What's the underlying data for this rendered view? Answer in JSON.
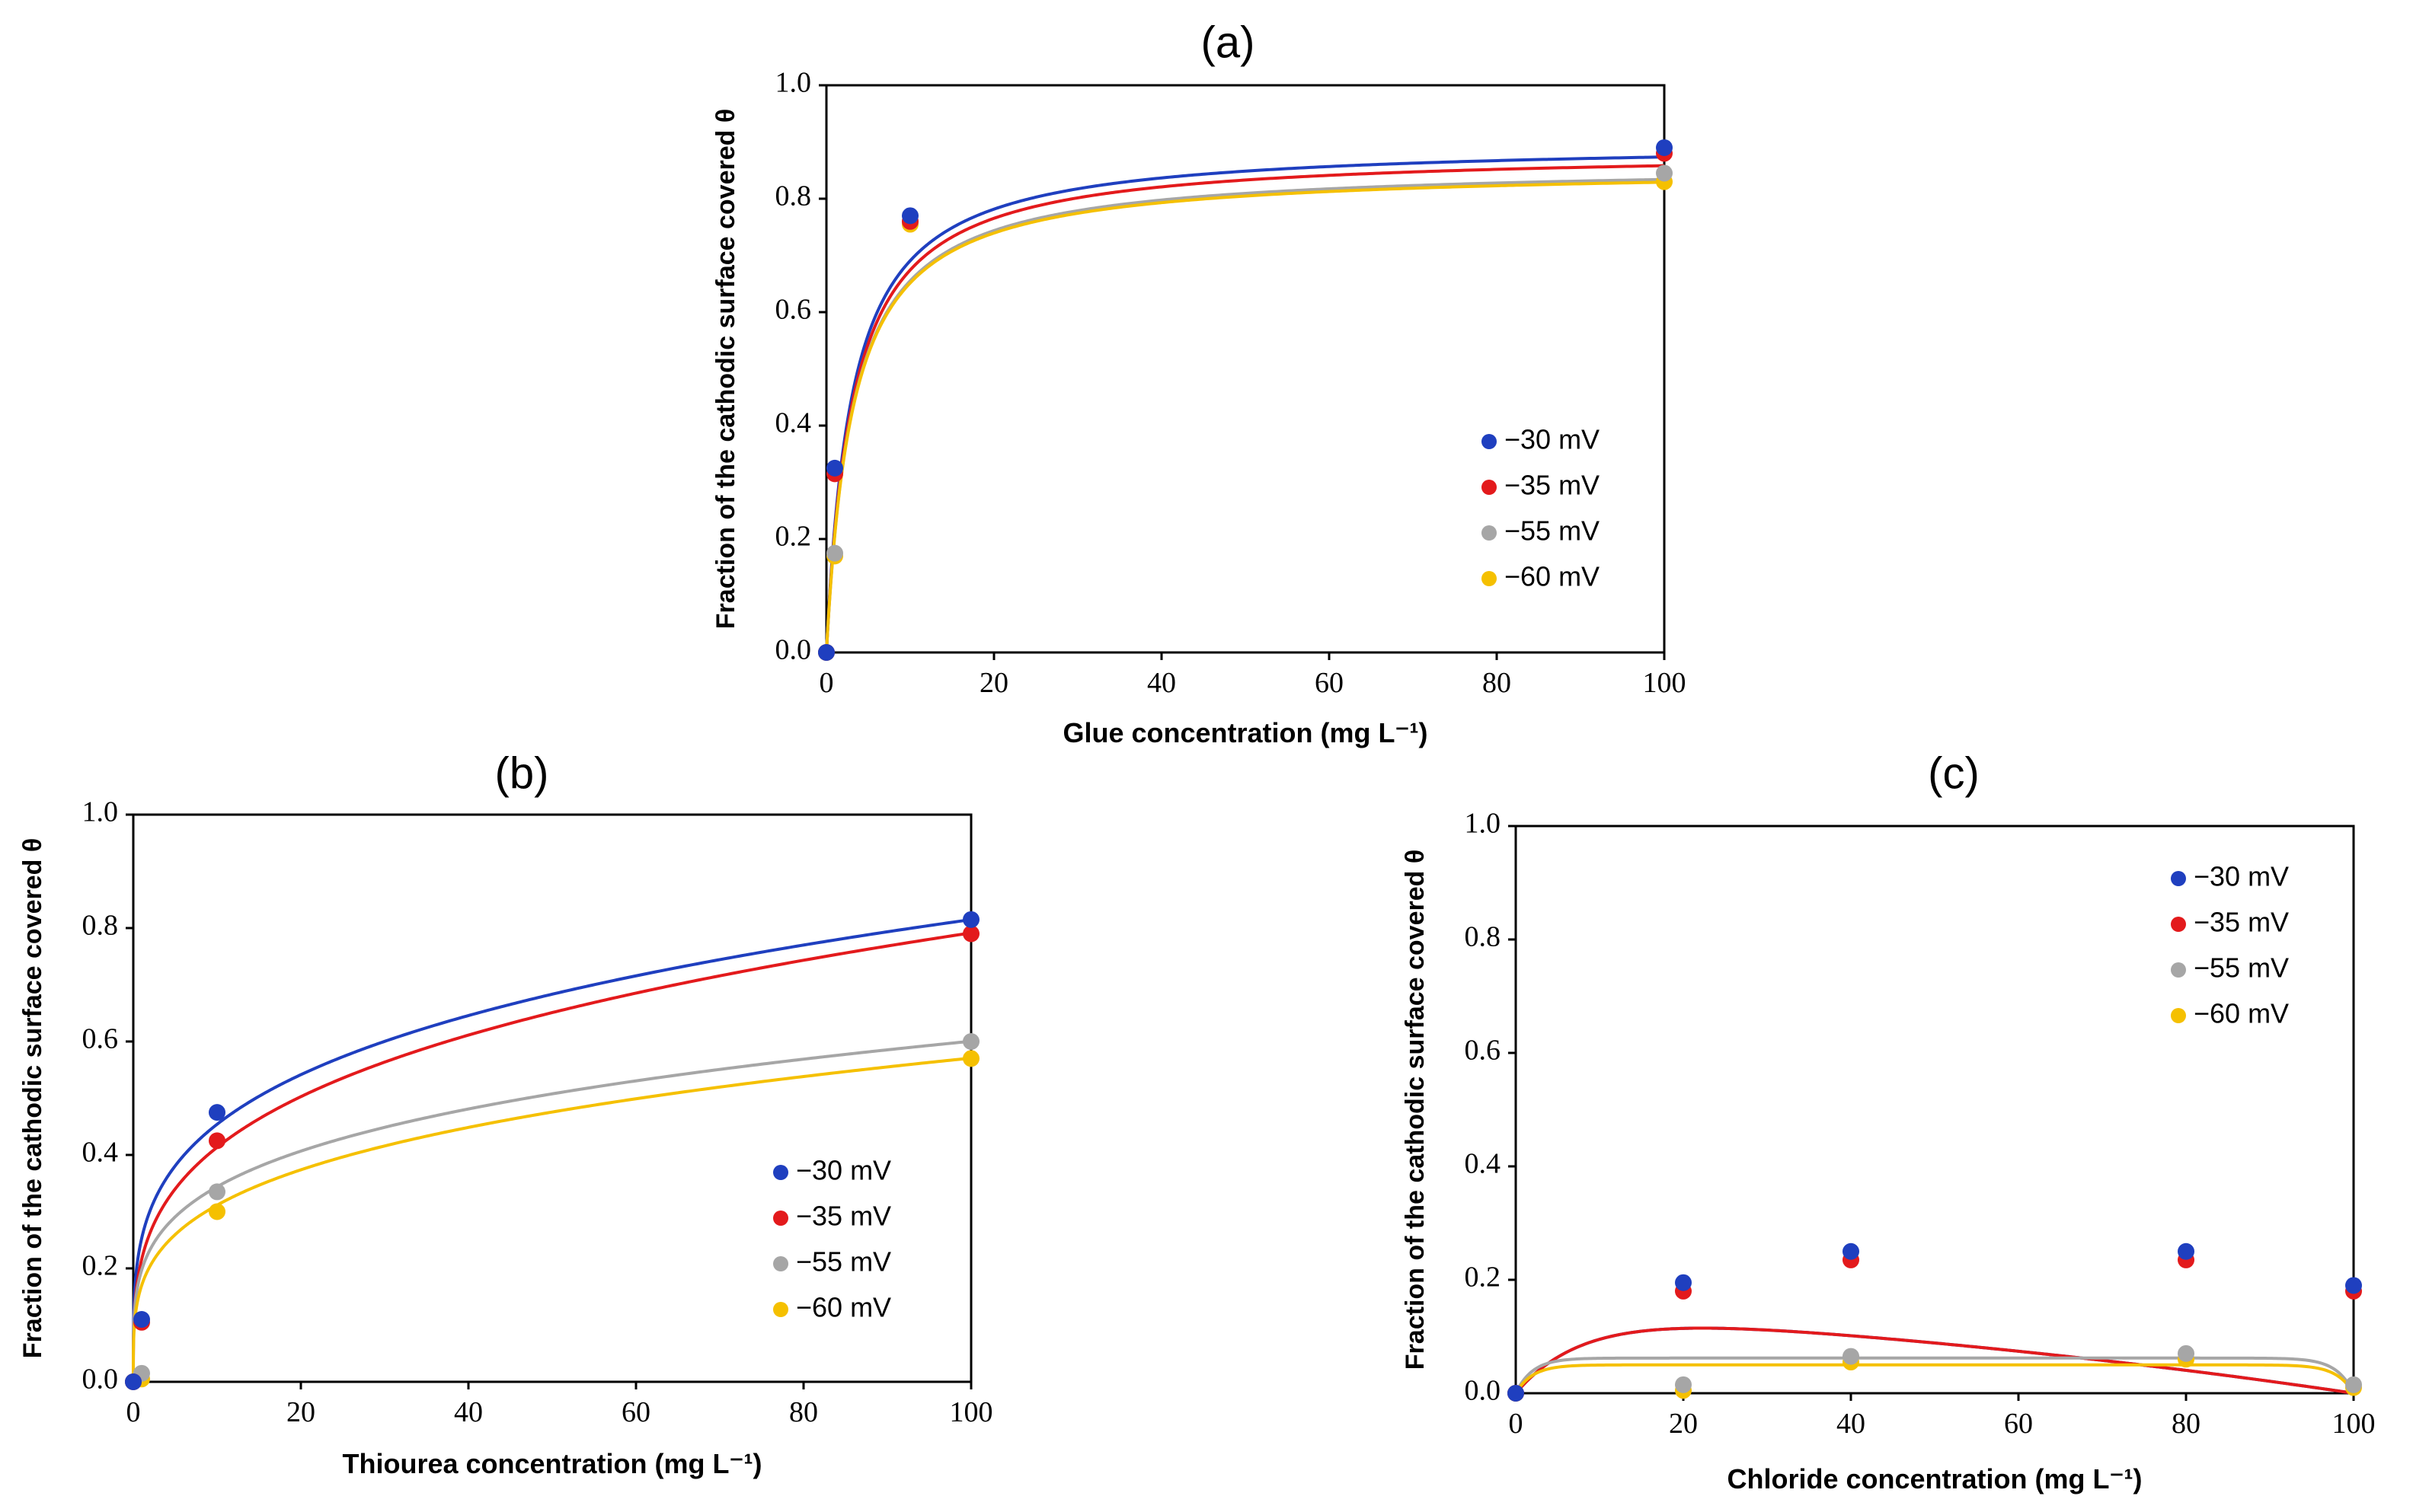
{
  "chart_data": [
    {
      "type": "scatter",
      "panel_label": "(a)",
      "xlabel": "Glue concentration (mg L⁻¹)",
      "ylabel": "Fraction of the cathodic surface covered θ",
      "xlim": [
        0,
        100
      ],
      "ylim": [
        0,
        1.0
      ],
      "x_ticks": [
        "0",
        "20",
        "40",
        "60",
        "80",
        "100"
      ],
      "y_ticks": [
        "0.0",
        "0.2",
        "0.4",
        "0.6",
        "0.8",
        "1.0"
      ],
      "legend_position": "bottom-right",
      "fit": "langmuir",
      "series": [
        {
          "name": "−30 mV",
          "color": "#1f3fbf",
          "x": [
            0,
            1,
            10,
            100
          ],
          "y": [
            0.0,
            0.325,
            0.77,
            0.89
          ],
          "fit_params": [
            0.9,
            0.33
          ]
        },
        {
          "name": "−35 mV",
          "color": "#e31a1c",
          "x": [
            0,
            1,
            10,
            100
          ],
          "y": [
            0.0,
            0.315,
            0.76,
            0.88
          ],
          "fit_params": [
            0.885,
            0.32
          ]
        },
        {
          "name": "−55 mV",
          "color": "#a6a6a6",
          "x": [
            0,
            1,
            10,
            100
          ],
          "y": [
            0.0,
            0.175,
            0.76,
            0.845
          ],
          "fit_params": [
            0.86,
            0.32
          ]
        },
        {
          "name": "−60 mV",
          "color": "#f5c000",
          "x": [
            0,
            1,
            10,
            100
          ],
          "y": [
            0.0,
            0.17,
            0.755,
            0.83
          ],
          "fit_params": [
            0.855,
            0.32
          ]
        }
      ]
    },
    {
      "type": "scatter",
      "panel_label": "(b)",
      "xlabel": "Thiourea concentration (mg L⁻¹)",
      "ylabel": "Fraction of the cathodic surface covered θ",
      "xlim": [
        0,
        100
      ],
      "ylim": [
        0,
        1.0
      ],
      "x_ticks": [
        "0",
        "20",
        "40",
        "60",
        "80",
        "100"
      ],
      "y_ticks": [
        "0.0",
        "0.2",
        "0.4",
        "0.6",
        "0.8",
        "1.0"
      ],
      "legend_position": "bottom-right",
      "fit": "power",
      "series": [
        {
          "name": "−30 mV",
          "color": "#1f3fbf",
          "x": [
            0,
            1,
            10,
            100
          ],
          "y": [
            0.0,
            0.11,
            0.475,
            0.815
          ],
          "fit_params": [
            0.253,
            0.254
          ]
        },
        {
          "name": "−35 mV",
          "color": "#e31a1c",
          "x": [
            0,
            1,
            10,
            100
          ],
          "y": [
            0.0,
            0.105,
            0.425,
            0.79
          ],
          "fit_params": [
            0.216,
            0.282
          ]
        },
        {
          "name": "−55 mV",
          "color": "#a6a6a6",
          "x": [
            0,
            1,
            10,
            100
          ],
          "y": [
            0.0,
            0.015,
            0.335,
            0.6
          ],
          "fit_params": [
            0.197,
            0.242
          ]
        },
        {
          "name": "−60 mV",
          "color": "#f5c000",
          "x": [
            0,
            1,
            10,
            100
          ],
          "y": [
            0.0,
            0.005,
            0.3,
            0.57
          ],
          "fit_params": [
            0.17,
            0.263
          ]
        }
      ]
    },
    {
      "type": "scatter",
      "panel_label": "(c)",
      "xlabel": "Chloride concentration (mg L⁻¹)",
      "ylabel": "Fraction of the cathodic surface covered θ",
      "xlim": [
        0,
        100
      ],
      "ylim": [
        0,
        1.0
      ],
      "x_ticks": [
        "0",
        "20",
        "40",
        "60",
        "80",
        "100"
      ],
      "y_ticks": [
        "0.0",
        "0.2",
        "0.4",
        "0.6",
        "0.8",
        "1.0"
      ],
      "legend_position": "top-right",
      "fit": "plateau",
      "series": [
        {
          "name": "−30 mV",
          "color": "#1f3fbf",
          "x": [
            0,
            20,
            40,
            80,
            100
          ],
          "y": [
            0.0,
            0.195,
            0.25,
            0.25,
            0.19
          ],
          "fit_params": [
            0.245,
            0.12,
            1.5
          ]
        },
        {
          "name": "−35 mV",
          "color": "#e31a1c",
          "x": [
            0,
            20,
            40,
            80,
            100
          ],
          "y": [
            0.0,
            0.18,
            0.235,
            0.235,
            0.18
          ],
          "fit_params": [
            0.245,
            0.12,
            1.5
          ]
        },
        {
          "name": "−55 mV",
          "color": "#a6a6a6",
          "x": [
            0,
            20,
            40,
            80,
            100
          ],
          "y": [
            0.0,
            0.015,
            0.065,
            0.07,
            0.015
          ],
          "fit_params": [
            0.062,
            0.5,
            10
          ]
        },
        {
          "name": "−60 mV",
          "color": "#f5c000",
          "x": [
            0,
            20,
            40,
            80,
            100
          ],
          "y": [
            0.0,
            0.005,
            0.055,
            0.06,
            0.01
          ],
          "fit_params": [
            0.05,
            0.5,
            10
          ]
        }
      ]
    }
  ]
}
